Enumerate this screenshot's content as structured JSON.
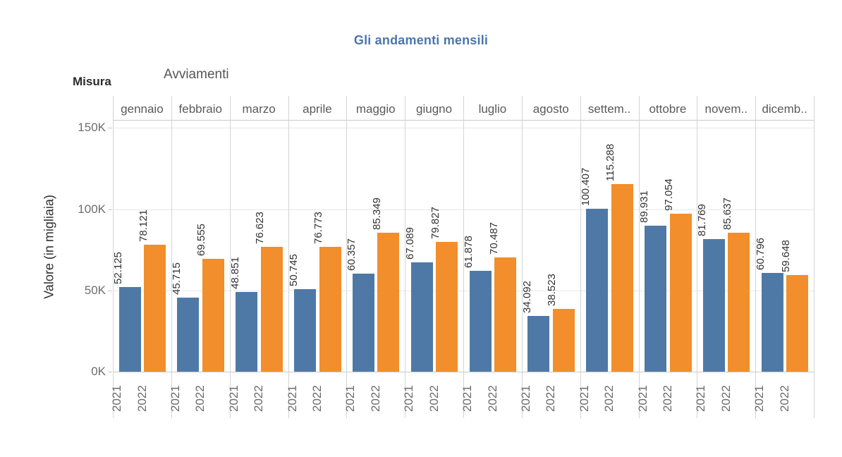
{
  "title": "Gli andamenti mensili",
  "controls": {
    "misura_label": "Misura",
    "misura_value": "Avviamenti"
  },
  "y_axis": {
    "title": "Valore (in migliaia)",
    "tick_labels_top_to_bottom": [
      "150K",
      "100K",
      "50K",
      "0K"
    ]
  },
  "colors": {
    "bar_2021": "#4e79a7",
    "bar_2022": "#f28e2b",
    "title_text": "#4a76ad"
  },
  "chart_data": {
    "type": "bar",
    "title": "Gli andamenti mensili",
    "xlabel": "",
    "ylabel": "Valore (in migliaia)",
    "ylim": [
      0,
      150000
    ],
    "y_tick_labels": [
      "0K",
      "50K",
      "100K",
      "150K"
    ],
    "grid": true,
    "legend_position": "none",
    "categories": [
      "gennaio",
      "febbraio",
      "marzo",
      "aprile",
      "maggio",
      "giugno",
      "luglio",
      "agosto",
      "settem..",
      "ottobre",
      "novem..",
      "dicemb.."
    ],
    "x_group_labels": [
      "2021",
      "2022"
    ],
    "series": [
      {
        "name": "2021",
        "color": "#4e79a7",
        "values": [
          52125,
          45715,
          48851,
          50745,
          60357,
          67089,
          61878,
          34092,
          100407,
          89931,
          81769,
          60796
        ],
        "labels": [
          "52.125",
          "45.715",
          "48.851",
          "50.745",
          "60.357",
          "67.089",
          "61.878",
          "34.092",
          "100.407",
          "89.931",
          "81.769",
          "60.796"
        ]
      },
      {
        "name": "2022",
        "color": "#f28e2b",
        "values": [
          78121,
          69555,
          76623,
          76773,
          85349,
          79827,
          70487,
          38523,
          115288,
          97054,
          85637,
          59648
        ],
        "labels": [
          "78.121",
          "69.555",
          "76.623",
          "76.773",
          "85.349",
          "79.827",
          "70.487",
          "38.523",
          "115.288",
          "97.054",
          "85.637",
          "59.648"
        ]
      }
    ]
  }
}
